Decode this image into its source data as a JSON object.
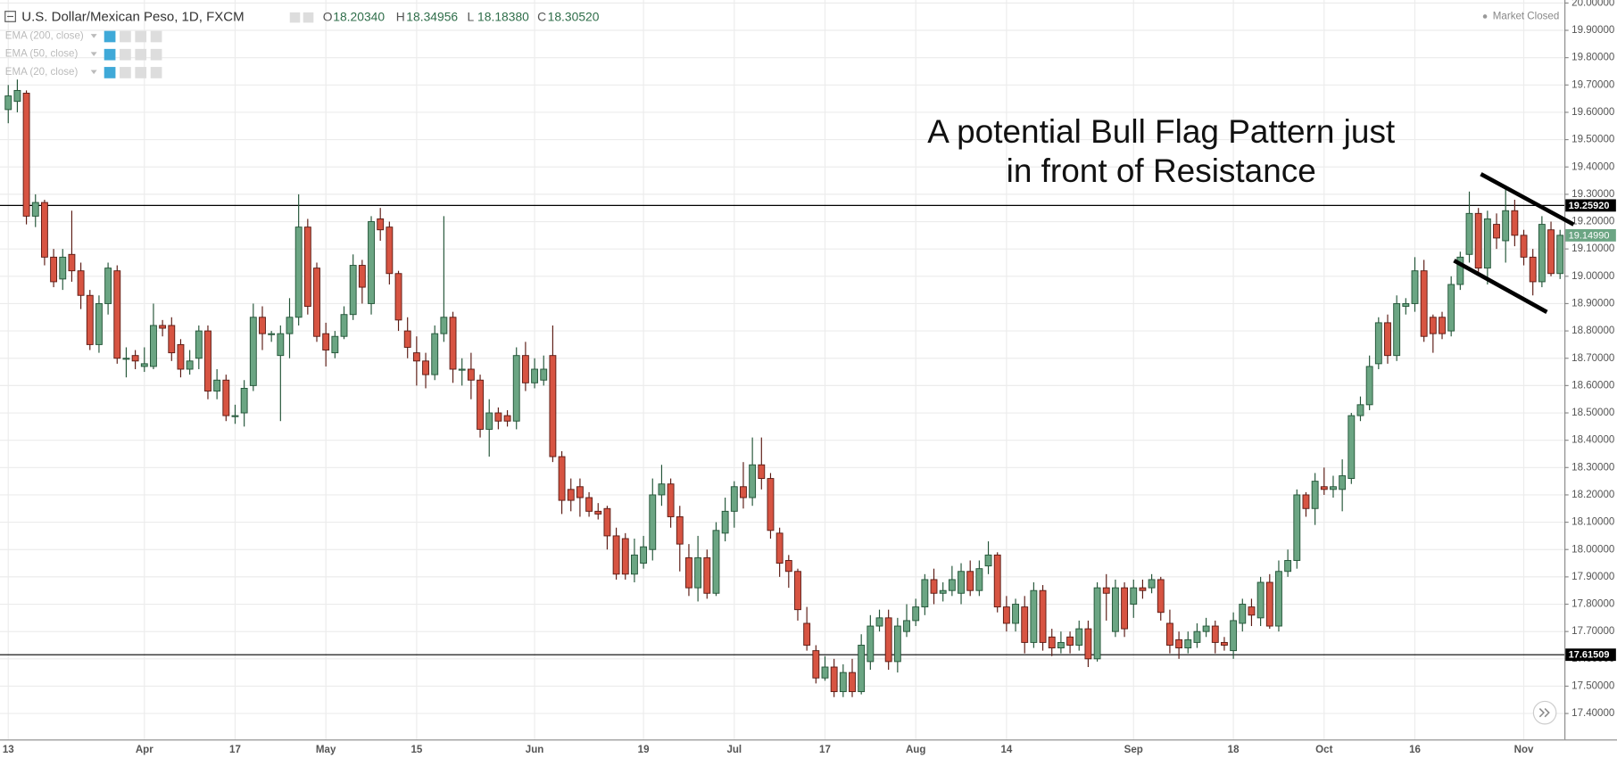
{
  "chart_data": {
    "type": "candlestick",
    "title": "U.S. Dollar/Mexican Peso, 1D, FXCM",
    "ohlc_readout": [
      {
        "key": "O",
        "value": "18.20340"
      },
      {
        "key": "H",
        "value": "18.34956"
      },
      {
        "key": "L",
        "value": "18.18380"
      },
      {
        "key": "C",
        "value": "18.30520"
      }
    ],
    "indicators": [
      "EMA (200, close)",
      "EMA (50, close)",
      "EMA (20, close)"
    ],
    "status": "Market Closed",
    "annotation": [
      "A potential Bull Flag Pattern just",
      "in front of Resistance"
    ],
    "up_color": "#6ba583",
    "down_color": "#d75442",
    "grid": true,
    "categories": [
      "13",
      null,
      null,
      null,
      null,
      null,
      null,
      null,
      null,
      null,
      null,
      null,
      null,
      null,
      null,
      "Apr",
      null,
      null,
      null,
      null,
      null,
      null,
      null,
      null,
      null,
      "17",
      null,
      null,
      null,
      null,
      null,
      null,
      null,
      null,
      null,
      "May",
      null,
      null,
      null,
      null,
      null,
      null,
      null,
      null,
      null,
      "15",
      null,
      null,
      null,
      null,
      null,
      null,
      null,
      null,
      null,
      null,
      null,
      null,
      "Jun",
      null,
      null,
      null,
      null,
      null,
      null,
      null,
      null,
      null,
      null,
      null,
      "19",
      null,
      null,
      null,
      null,
      null,
      null,
      null,
      null,
      null,
      "Jul",
      null,
      null,
      null,
      null,
      null,
      null,
      null,
      null,
      null,
      "17",
      null,
      null,
      null,
      null,
      null,
      null,
      null,
      null,
      null,
      "Aug",
      null,
      null,
      null,
      null,
      null,
      null,
      null,
      null,
      null,
      "14",
      null,
      null,
      null,
      null,
      null,
      null,
      null,
      null,
      null,
      null,
      null,
      null,
      null,
      "Sep",
      null,
      null,
      null,
      null,
      null,
      null,
      null,
      null,
      null,
      null,
      "18",
      null,
      null,
      null,
      null,
      null,
      null,
      null,
      null,
      null,
      "Oct",
      null,
      null,
      null,
      null,
      null,
      null,
      null,
      null,
      null,
      "16",
      null,
      null,
      null,
      null,
      null,
      null,
      null,
      null,
      null,
      null,
      null,
      "Nov",
      null,
      null,
      null,
      null
    ],
    "open": [
      19.61,
      19.64,
      19.67,
      19.22,
      19.27,
      19.07,
      18.99,
      19.08,
      19.02,
      18.93,
      18.75,
      18.9,
      19.02,
      18.7,
      18.71,
      18.67,
      18.67,
      18.82,
      18.82,
      18.75,
      18.66,
      18.7,
      18.8,
      18.58,
      18.62,
      18.49,
      18.5,
      18.6,
      18.85,
      18.79,
      18.71,
      18.79,
      18.85,
      19.18,
      19.03,
      18.79,
      18.72,
      18.78,
      18.86,
      19.04,
      18.9,
      19.21,
      19.18,
      19.01,
      18.8,
      18.72,
      18.69,
      18.64,
      18.79,
      18.85,
      18.66,
      18.66,
      18.62,
      18.44,
      18.5,
      18.49,
      18.47,
      18.71,
      18.61,
      18.62,
      18.71,
      18.34,
      18.22,
      18.23,
      18.19,
      18.14,
      18.15,
      18.05,
      18.04,
      17.91,
      17.95,
      18.0,
      18.2,
      18.24,
      18.12,
      17.97,
      17.86,
      17.97,
      17.84,
      18.06,
      18.14,
      18.23,
      18.19,
      18.31,
      18.26,
      18.06,
      17.96,
      17.92,
      17.73,
      17.63,
      17.53,
      17.57,
      17.48,
      17.55,
      17.48,
      17.59,
      17.72,
      17.75,
      17.59,
      17.7,
      17.74,
      17.79,
      17.89,
      17.84,
      17.85,
      17.84,
      17.92,
      17.85,
      17.94,
      17.98,
      17.79,
      17.73,
      17.79,
      17.66,
      17.85,
      17.68,
      17.64,
      17.68,
      17.65,
      17.71,
      17.6,
      17.86,
      17.7,
      17.86,
      17.8,
      17.86,
      17.86,
      17.89,
      17.73,
      17.67,
      17.64,
      17.66,
      17.7,
      17.72,
      17.66,
      17.63,
      17.73,
      17.79,
      17.75,
      17.88,
      17.72,
      17.92,
      17.96,
      18.2,
      18.15,
      18.23,
      18.22,
      18.22,
      18.26,
      18.49,
      18.53,
      18.68,
      18.83,
      18.71,
      18.89,
      18.9,
      19.02,
      18.85,
      18.85,
      18.8,
      18.97,
      19.08,
      19.23,
      19.03,
      19.19,
      19.13,
      19.24,
      19.15,
      19.07,
      18.98,
      19.17,
      19.01
    ],
    "high": [
      19.7,
      19.72,
      19.68,
      19.3,
      19.28,
      19.1,
      19.1,
      19.24,
      19.05,
      18.95,
      18.93,
      19.05,
      19.04,
      18.74,
      18.73,
      18.74,
      18.9,
      18.84,
      18.85,
      18.77,
      18.73,
      18.82,
      18.82,
      18.66,
      18.64,
      18.53,
      18.62,
      18.9,
      18.89,
      18.8,
      18.82,
      18.92,
      19.3,
      19.21,
      19.05,
      18.83,
      18.8,
      18.89,
      19.08,
      19.06,
      19.22,
      19.25,
      19.2,
      19.02,
      18.85,
      18.78,
      18.72,
      18.82,
      19.22,
      18.87,
      18.7,
      18.72,
      18.64,
      18.55,
      18.52,
      18.51,
      18.74,
      18.76,
      18.7,
      18.71,
      18.82,
      18.36,
      18.26,
      18.26,
      18.21,
      18.17,
      18.16,
      18.08,
      18.06,
      18.04,
      18.05,
      18.26,
      18.31,
      18.26,
      18.16,
      18.02,
      18.05,
      18.0,
      18.1,
      18.19,
      18.25,
      18.32,
      18.41,
      18.41,
      18.28,
      18.08,
      17.98,
      17.93,
      17.79,
      17.65,
      17.61,
      17.6,
      17.58,
      17.6,
      17.69,
      17.76,
      17.78,
      17.78,
      17.75,
      17.8,
      17.82,
      17.91,
      17.93,
      17.88,
      17.94,
      17.95,
      17.96,
      17.96,
      18.03,
      17.99,
      17.83,
      17.82,
      17.83,
      17.88,
      17.87,
      17.71,
      17.7,
      17.7,
      17.74,
      17.74,
      17.88,
      17.91,
      17.89,
      17.88,
      17.89,
      17.89,
      17.91,
      17.9,
      17.78,
      17.7,
      17.7,
      17.73,
      17.75,
      17.74,
      17.68,
      17.77,
      17.82,
      17.82,
      17.9,
      17.91,
      17.96,
      18.0,
      18.22,
      18.21,
      18.28,
      18.3,
      18.27,
      18.33,
      18.5,
      18.56,
      18.71,
      18.85,
      18.86,
      18.93,
      18.92,
      19.07,
      19.06,
      18.86,
      18.87,
      19.0,
      19.09,
      19.31,
      19.25,
      19.24,
      19.23,
      19.32,
      19.28,
      19.17,
      19.1,
      19.22,
      19.2,
      19.17
    ],
    "low": [
      19.56,
      19.6,
      19.19,
      19.18,
      19.04,
      18.96,
      18.95,
      18.98,
      18.88,
      18.73,
      18.72,
      18.86,
      18.68,
      18.63,
      18.66,
      18.65,
      18.66,
      18.78,
      18.69,
      18.63,
      18.64,
      18.66,
      18.55,
      18.55,
      18.47,
      18.46,
      18.45,
      18.58,
      18.73,
      18.76,
      18.47,
      18.7,
      18.82,
      18.86,
      18.76,
      18.67,
      18.7,
      18.77,
      18.84,
      18.9,
      18.86,
      19.13,
      18.97,
      18.8,
      18.7,
      18.6,
      18.59,
      18.62,
      18.76,
      18.61,
      18.6,
      18.55,
      18.41,
      18.34,
      18.44,
      18.45,
      18.44,
      18.58,
      18.59,
      18.6,
      18.32,
      18.13,
      18.14,
      18.12,
      18.12,
      18.11,
      18.0,
      17.89,
      17.89,
      17.88,
      17.93,
      17.96,
      18.16,
      18.08,
      17.92,
      17.83,
      17.81,
      17.82,
      17.83,
      18.03,
      18.08,
      18.15,
      18.16,
      18.22,
      18.04,
      17.9,
      17.86,
      17.74,
      17.63,
      17.51,
      17.52,
      17.46,
      17.46,
      17.46,
      17.47,
      17.56,
      17.7,
      17.56,
      17.55,
      17.68,
      17.72,
      17.76,
      17.8,
      17.81,
      17.83,
      17.8,
      17.83,
      17.83,
      17.91,
      17.77,
      17.7,
      17.7,
      17.62,
      17.64,
      17.63,
      17.61,
      17.62,
      17.62,
      17.63,
      17.57,
      17.59,
      17.74,
      17.68,
      17.68,
      17.75,
      17.82,
      17.84,
      17.74,
      17.62,
      17.6,
      17.62,
      17.64,
      17.68,
      17.62,
      17.63,
      17.6,
      17.7,
      17.72,
      17.72,
      17.71,
      17.7,
      17.9,
      17.93,
      18.12,
      18.09,
      18.2,
      18.19,
      18.14,
      18.24,
      18.47,
      18.51,
      18.66,
      18.68,
      18.69,
      18.86,
      18.87,
      18.76,
      18.72,
      18.77,
      18.78,
      18.95,
      19.05,
      19.0,
      18.97,
      19.1,
      19.05,
      19.11,
      19.04,
      18.93,
      18.96,
      19.0,
      18.99
    ],
    "close": [
      19.66,
      19.68,
      19.22,
      19.27,
      19.07,
      18.98,
      19.07,
      19.02,
      18.93,
      18.75,
      18.9,
      19.03,
      18.7,
      18.7,
      18.69,
      18.68,
      18.82,
      18.81,
      18.72,
      18.66,
      18.69,
      18.8,
      18.58,
      18.62,
      18.49,
      18.49,
      18.59,
      18.85,
      18.79,
      18.79,
      18.79,
      18.85,
      19.18,
      18.89,
      18.78,
      18.73,
      18.78,
      18.86,
      19.04,
      18.96,
      19.2,
      19.17,
      19.01,
      18.84,
      18.74,
      18.69,
      18.64,
      18.79,
      18.85,
      18.66,
      18.66,
      18.62,
      18.44,
      18.5,
      18.47,
      18.47,
      18.71,
      18.61,
      18.66,
      18.66,
      18.34,
      18.18,
      18.18,
      18.19,
      18.14,
      18.13,
      18.05,
      17.91,
      17.91,
      17.98,
      18.01,
      18.2,
      18.24,
      18.12,
      18.02,
      17.86,
      17.97,
      17.84,
      18.07,
      18.14,
      18.23,
      18.19,
      18.31,
      18.26,
      18.07,
      17.95,
      17.92,
      17.78,
      17.65,
      17.53,
      17.57,
      17.48,
      17.55,
      17.48,
      17.65,
      17.72,
      17.75,
      17.59,
      17.72,
      17.74,
      17.79,
      17.89,
      17.84,
      17.85,
      17.89,
      17.92,
      17.85,
      17.93,
      17.98,
      17.79,
      17.73,
      17.8,
      17.66,
      17.85,
      17.66,
      17.64,
      17.66,
      17.65,
      17.71,
      17.6,
      17.86,
      17.84,
      17.86,
      17.71,
      17.86,
      17.85,
      17.89,
      17.77,
      17.65,
      17.64,
      17.67,
      17.7,
      17.72,
      17.66,
      17.65,
      17.74,
      17.8,
      17.76,
      17.88,
      17.72,
      17.92,
      17.96,
      18.2,
      18.15,
      18.25,
      18.22,
      18.23,
      18.27,
      18.49,
      18.53,
      18.67,
      18.83,
      18.71,
      18.9,
      18.9,
      19.02,
      18.78,
      18.79,
      18.79,
      18.97,
      19.07,
      19.23,
      19.03,
      19.21,
      19.14,
      19.24,
      19.15,
      19.07,
      18.98,
      19.19,
      19.01,
      19.15
    ],
    "ylim": [
      17.305,
      20.011
    ],
    "yticks": [
      {
        "value": 17.4,
        "label": "17.40000"
      },
      {
        "value": 17.5,
        "label": "17.50000"
      },
      {
        "value": 17.6,
        "label": "17.60000"
      },
      {
        "value": 17.7,
        "label": "17.70000"
      },
      {
        "value": 17.8,
        "label": "17.80000"
      },
      {
        "value": 17.9,
        "label": "17.90000"
      },
      {
        "value": 18.0,
        "label": "18.00000"
      },
      {
        "value": 18.1,
        "label": "18.10000"
      },
      {
        "value": 18.2,
        "label": "18.20000"
      },
      {
        "value": 18.3,
        "label": "18.30000"
      },
      {
        "value": 18.4,
        "label": "18.40000"
      },
      {
        "value": 18.5,
        "label": "18.50000"
      },
      {
        "value": 18.6,
        "label": "18.60000"
      },
      {
        "value": 18.7,
        "label": "18.70000"
      },
      {
        "value": 18.8,
        "label": "18.80000"
      },
      {
        "value": 18.9,
        "label": "18.90000"
      },
      {
        "value": 19.0,
        "label": "19.00000"
      },
      {
        "value": 19.1,
        "label": "19.10000"
      },
      {
        "value": 19.2,
        "label": "19.20000"
      },
      {
        "value": 19.3,
        "label": "19.30000"
      },
      {
        "value": 19.4,
        "label": "19.40000"
      },
      {
        "value": 19.5,
        "label": "19.50000"
      },
      {
        "value": 19.6,
        "label": "19.60000"
      },
      {
        "value": 19.7,
        "label": "19.70000"
      },
      {
        "value": 19.8,
        "label": "19.80000"
      },
      {
        "value": 19.9,
        "label": "19.90000"
      },
      {
        "value": 20.0,
        "label": "20.00000"
      }
    ],
    "hlines": [
      {
        "value": 19.2592,
        "label": "19.25920",
        "color": "#000000"
      },
      {
        "value": 17.61509,
        "label": "17.61509",
        "color": "#000000"
      }
    ],
    "last_price": {
      "value": 19.1499,
      "label": "19.14990",
      "color": "#6ba583"
    }
  }
}
